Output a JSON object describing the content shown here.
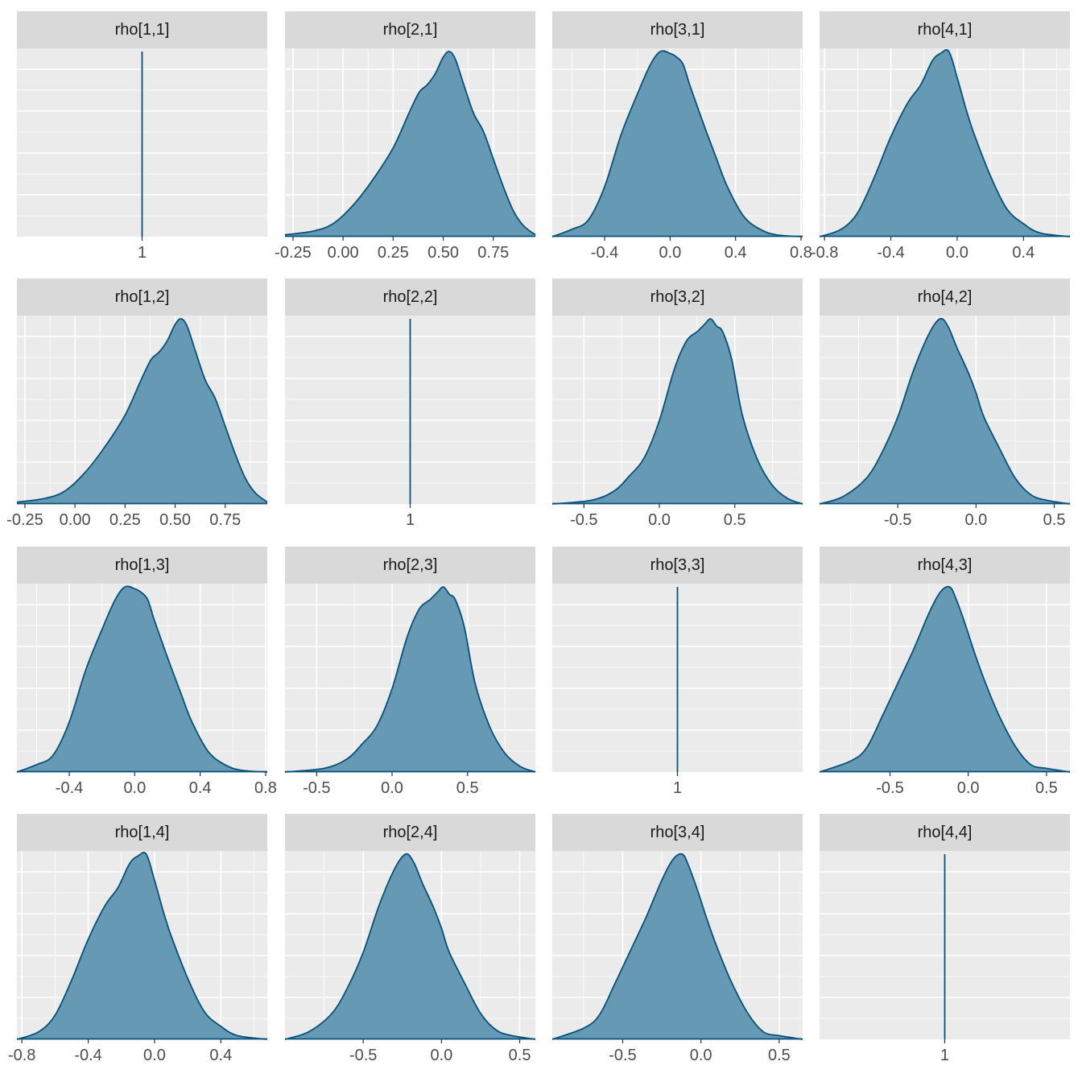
{
  "chart_data": {
    "type": "area",
    "layout": "facet-grid",
    "rows": 4,
    "cols": 4,
    "fill_color": "#6699b3",
    "line_color": "#07517a",
    "panel_background": "#ebebeb",
    "strip_background": "#d9d9d9",
    "grid_color": "#ffffff",
    "panels": [
      {
        "title": "rho[1,1]",
        "kind": "vline",
        "value": 1,
        "xticks": [
          1
        ],
        "xtick_labels": [
          "1"
        ]
      },
      {
        "title": "rho[2,1]",
        "kind": "density",
        "xlim": [
          -0.29,
          0.96
        ],
        "xticks": [
          -0.25,
          0,
          0.25,
          0.5,
          0.75
        ],
        "xtick_labels": [
          "-0.25",
          "0.00",
          "0.25",
          "0.50",
          "0.75"
        ],
        "x": [
          -0.29,
          -0.15,
          -0.05,
          0.05,
          0.15,
          0.25,
          0.33,
          0.38,
          0.42,
          0.46,
          0.5,
          0.53,
          0.56,
          0.6,
          0.65,
          0.7,
          0.75,
          0.8,
          0.85,
          0.9,
          0.96
        ],
        "density": [
          0.01,
          0.03,
          0.07,
          0.17,
          0.31,
          0.48,
          0.67,
          0.78,
          0.82,
          0.88,
          0.97,
          1.0,
          0.96,
          0.83,
          0.67,
          0.57,
          0.42,
          0.27,
          0.14,
          0.06,
          0.01
        ]
      },
      {
        "title": "rho[3,1]",
        "kind": "density",
        "xlim": [
          -0.72,
          0.81
        ],
        "xticks": [
          -0.4,
          0,
          0.4,
          0.8
        ],
        "xtick_labels": [
          "-0.4",
          "0.0",
          "0.4",
          "0.8"
        ],
        "x": [
          -0.72,
          -0.6,
          -0.5,
          -0.4,
          -0.3,
          -0.2,
          -0.12,
          -0.06,
          0.0,
          0.04,
          0.08,
          0.12,
          0.2,
          0.28,
          0.35,
          0.45,
          0.55,
          0.65,
          0.81
        ],
        "density": [
          0.0,
          0.04,
          0.09,
          0.27,
          0.55,
          0.77,
          0.93,
          1.0,
          0.99,
          0.97,
          0.93,
          0.82,
          0.62,
          0.43,
          0.27,
          0.11,
          0.04,
          0.01,
          0.0
        ]
      },
      {
        "title": "rho[4,1]",
        "kind": "density",
        "xlim": [
          -0.83,
          0.68
        ],
        "xticks": [
          -0.8,
          -0.4,
          0,
          0.4
        ],
        "xtick_labels": [
          "-0.8",
          "-0.4",
          "0.0",
          "0.4"
        ],
        "x": [
          -0.83,
          -0.7,
          -0.6,
          -0.5,
          -0.4,
          -0.3,
          -0.22,
          -0.15,
          -0.1,
          -0.05,
          0.0,
          0.05,
          0.1,
          0.2,
          0.3,
          0.4,
          0.5,
          0.68
        ],
        "density": [
          0.0,
          0.04,
          0.13,
          0.32,
          0.54,
          0.72,
          0.82,
          0.95,
          0.99,
          1.0,
          0.86,
          0.7,
          0.56,
          0.33,
          0.15,
          0.07,
          0.02,
          0.0
        ]
      },
      {
        "title": "rho[1,2]",
        "kind": "density",
        "xlim": [
          -0.29,
          0.96
        ],
        "xticks": [
          -0.25,
          0,
          0.25,
          0.5,
          0.75
        ],
        "xtick_labels": [
          "-0.25",
          "0.00",
          "0.25",
          "0.50",
          "0.75"
        ],
        "x": [
          -0.29,
          -0.15,
          -0.05,
          0.05,
          0.15,
          0.25,
          0.33,
          0.38,
          0.42,
          0.46,
          0.5,
          0.53,
          0.56,
          0.6,
          0.65,
          0.7,
          0.75,
          0.8,
          0.85,
          0.9,
          0.96
        ],
        "density": [
          0.01,
          0.03,
          0.07,
          0.17,
          0.31,
          0.48,
          0.67,
          0.78,
          0.82,
          0.88,
          0.97,
          1.0,
          0.96,
          0.83,
          0.67,
          0.57,
          0.42,
          0.27,
          0.14,
          0.06,
          0.01
        ]
      },
      {
        "title": "rho[2,2]",
        "kind": "vline",
        "value": 1,
        "xticks": [
          1
        ],
        "xtick_labels": [
          "1"
        ]
      },
      {
        "title": "rho[3,2]",
        "kind": "density",
        "xlim": [
          -0.71,
          0.95
        ],
        "xticks": [
          -0.5,
          0,
          0.5
        ],
        "xtick_labels": [
          "-0.5",
          "0.0",
          "0.5"
        ],
        "x": [
          -0.71,
          -0.45,
          -0.3,
          -0.2,
          -0.1,
          0.0,
          0.1,
          0.18,
          0.25,
          0.3,
          0.34,
          0.38,
          0.42,
          0.48,
          0.55,
          0.65,
          0.75,
          0.85,
          0.95
        ],
        "density": [
          0.0,
          0.02,
          0.07,
          0.15,
          0.25,
          0.45,
          0.73,
          0.88,
          0.93,
          0.97,
          1.0,
          0.96,
          0.93,
          0.78,
          0.48,
          0.24,
          0.1,
          0.03,
          0.0
        ]
      },
      {
        "title": "rho[4,2]",
        "kind": "density",
        "xlim": [
          -1.0,
          0.6
        ],
        "xticks": [
          -0.5,
          0,
          0.5
        ],
        "xtick_labels": [
          "-0.5",
          "0.0",
          "0.5"
        ],
        "x": [
          -1.0,
          -0.85,
          -0.7,
          -0.6,
          -0.5,
          -0.4,
          -0.3,
          -0.23,
          -0.18,
          -0.12,
          -0.05,
          0.0,
          0.05,
          0.15,
          0.25,
          0.35,
          0.45,
          0.6
        ],
        "density": [
          0.0,
          0.04,
          0.14,
          0.28,
          0.47,
          0.72,
          0.92,
          1.0,
          0.96,
          0.84,
          0.71,
          0.6,
          0.47,
          0.3,
          0.14,
          0.05,
          0.02,
          0.0
        ]
      },
      {
        "title": "rho[1,3]",
        "kind": "density",
        "xlim": [
          -0.72,
          0.81
        ],
        "xticks": [
          -0.4,
          0,
          0.4,
          0.8
        ],
        "xtick_labels": [
          "-0.4",
          "0.0",
          "0.4",
          "0.8"
        ],
        "x": [
          -0.72,
          -0.6,
          -0.5,
          -0.4,
          -0.3,
          -0.2,
          -0.12,
          -0.06,
          0.0,
          0.04,
          0.08,
          0.12,
          0.2,
          0.28,
          0.35,
          0.45,
          0.55,
          0.65,
          0.81
        ],
        "density": [
          0.0,
          0.04,
          0.09,
          0.27,
          0.55,
          0.77,
          0.93,
          1.0,
          0.99,
          0.97,
          0.93,
          0.82,
          0.62,
          0.43,
          0.27,
          0.11,
          0.04,
          0.01,
          0.0
        ]
      },
      {
        "title": "rho[2,3]",
        "kind": "density",
        "xlim": [
          -0.71,
          0.95
        ],
        "xticks": [
          -0.5,
          0,
          0.5
        ],
        "xtick_labels": [
          "-0.5",
          "0.0",
          "0.5"
        ],
        "x": [
          -0.71,
          -0.45,
          -0.3,
          -0.2,
          -0.1,
          0.0,
          0.1,
          0.18,
          0.25,
          0.3,
          0.34,
          0.38,
          0.42,
          0.48,
          0.55,
          0.65,
          0.75,
          0.85,
          0.95
        ],
        "density": [
          0.0,
          0.02,
          0.07,
          0.15,
          0.25,
          0.45,
          0.73,
          0.88,
          0.93,
          0.97,
          1.0,
          0.96,
          0.93,
          0.78,
          0.48,
          0.24,
          0.1,
          0.03,
          0.0
        ]
      },
      {
        "title": "rho[3,3]",
        "kind": "vline",
        "value": 1,
        "xticks": [
          1
        ],
        "xtick_labels": [
          "1"
        ]
      },
      {
        "title": "rho[4,3]",
        "kind": "density",
        "xlim": [
          -0.95,
          0.65
        ],
        "xticks": [
          -0.5,
          0,
          0.5
        ],
        "xtick_labels": [
          "-0.5",
          "0.0",
          "0.5"
        ],
        "x": [
          -0.95,
          -0.75,
          -0.65,
          -0.55,
          -0.45,
          -0.35,
          -0.25,
          -0.18,
          -0.12,
          -0.08,
          -0.02,
          0.05,
          0.12,
          0.2,
          0.3,
          0.4,
          0.5,
          0.65
        ],
        "density": [
          0.0,
          0.06,
          0.13,
          0.3,
          0.48,
          0.66,
          0.86,
          0.97,
          1.0,
          0.94,
          0.8,
          0.62,
          0.46,
          0.3,
          0.14,
          0.04,
          0.02,
          0.0
        ]
      },
      {
        "title": "rho[1,4]",
        "kind": "density",
        "xlim": [
          -0.83,
          0.68
        ],
        "xticks": [
          -0.8,
          -0.4,
          0,
          0.4
        ],
        "xtick_labels": [
          "-0.8",
          "-0.4",
          "0.0",
          "0.4"
        ],
        "x": [
          -0.83,
          -0.7,
          -0.6,
          -0.5,
          -0.4,
          -0.3,
          -0.22,
          -0.15,
          -0.1,
          -0.05,
          0.0,
          0.05,
          0.1,
          0.2,
          0.3,
          0.4,
          0.5,
          0.68
        ],
        "density": [
          0.0,
          0.04,
          0.13,
          0.32,
          0.54,
          0.72,
          0.82,
          0.95,
          0.99,
          1.0,
          0.86,
          0.7,
          0.56,
          0.33,
          0.15,
          0.07,
          0.02,
          0.0
        ]
      },
      {
        "title": "rho[2,4]",
        "kind": "density",
        "xlim": [
          -1.0,
          0.6
        ],
        "xticks": [
          -0.5,
          0,
          0.5
        ],
        "xtick_labels": [
          "-0.5",
          "0.0",
          "0.5"
        ],
        "x": [
          -1.0,
          -0.85,
          -0.7,
          -0.6,
          -0.5,
          -0.4,
          -0.3,
          -0.23,
          -0.18,
          -0.12,
          -0.05,
          0.0,
          0.05,
          0.15,
          0.25,
          0.35,
          0.45,
          0.6
        ],
        "density": [
          0.0,
          0.04,
          0.14,
          0.28,
          0.47,
          0.72,
          0.92,
          1.0,
          0.96,
          0.84,
          0.71,
          0.6,
          0.47,
          0.3,
          0.14,
          0.05,
          0.02,
          0.0
        ]
      },
      {
        "title": "rho[3,4]",
        "kind": "density",
        "xlim": [
          -0.95,
          0.65
        ],
        "xticks": [
          -0.5,
          0,
          0.5
        ],
        "xtick_labels": [
          "-0.5",
          "0.0",
          "0.5"
        ],
        "x": [
          -0.95,
          -0.75,
          -0.65,
          -0.55,
          -0.45,
          -0.35,
          -0.25,
          -0.18,
          -0.12,
          -0.08,
          -0.02,
          0.05,
          0.12,
          0.2,
          0.3,
          0.4,
          0.5,
          0.65
        ],
        "density": [
          0.0,
          0.06,
          0.13,
          0.3,
          0.48,
          0.66,
          0.86,
          0.97,
          1.0,
          0.94,
          0.8,
          0.62,
          0.46,
          0.3,
          0.14,
          0.04,
          0.02,
          0.0
        ]
      },
      {
        "title": "rho[4,4]",
        "kind": "vline",
        "value": 1,
        "xticks": [
          1
        ],
        "xtick_labels": [
          "1"
        ]
      }
    ]
  }
}
